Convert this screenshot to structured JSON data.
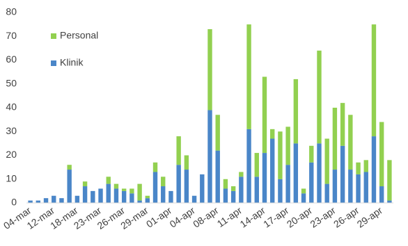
{
  "chart_data": {
    "type": "stacked_bar",
    "categories": [
      "04-mar",
      null,
      null,
      "12-mar",
      null,
      null,
      "18-mar",
      null,
      null,
      "23-mar",
      null,
      null,
      "26-mar",
      null,
      null,
      "29-mar",
      null,
      null,
      "01-apr",
      null,
      null,
      "04-apr",
      null,
      null,
      "08-apr",
      null,
      null,
      "11-apr",
      null,
      null,
      "14-apr",
      null,
      null,
      "17-apr",
      null,
      null,
      "20-apr",
      null,
      null,
      "23-apr",
      null,
      null,
      "26-apr",
      null,
      null,
      "29-apr",
      null
    ],
    "series": [
      {
        "name": "Klinik",
        "color": "#4a86c8",
        "values": [
          1,
          1,
          2,
          3,
          2,
          14,
          3,
          7,
          5,
          6,
          8,
          6,
          5,
          4,
          1,
          2,
          13,
          7,
          5,
          16,
          14,
          3,
          12,
          39,
          22,
          6,
          5,
          11,
          31,
          11,
          21,
          27,
          10,
          16,
          25,
          4,
          17,
          25,
          8,
          14,
          24,
          14,
          12,
          13,
          28,
          7,
          1
        ]
      },
      {
        "name": "Personal",
        "color": "#92d050",
        "values": [
          0,
          0,
          0,
          0,
          0,
          2,
          0,
          2,
          0,
          0,
          3,
          2,
          1,
          2,
          7,
          1,
          4,
          4,
          0,
          12,
          6,
          0,
          0,
          34,
          15,
          4,
          2,
          2,
          44,
          10,
          32,
          4,
          20,
          16,
          27,
          2,
          7,
          39,
          19,
          26,
          18,
          23,
          5,
          5,
          47,
          27,
          17
        ]
      }
    ],
    "ylim": [
      0,
      80
    ],
    "yticks": [
      0,
      10,
      20,
      30,
      40,
      50,
      60,
      70,
      80
    ],
    "grid": false,
    "legend": "top-left"
  }
}
